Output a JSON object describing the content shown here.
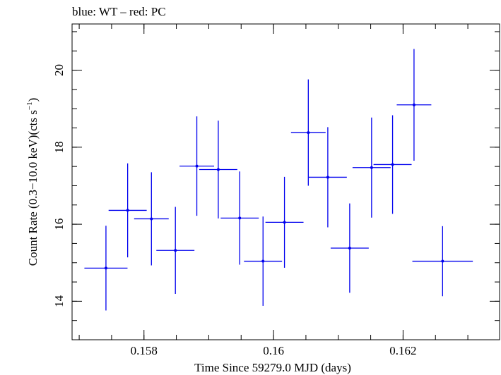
{
  "chart_data": {
    "type": "scatter",
    "title": "blue: WT – red: PC",
    "xlabel": "Time Since 59279.0 MJD (days)",
    "ylabel_main": "Count Rate (0.3−10.0 keV)(cts s",
    "ylabel_sup": "−1",
    "ylabel_close": ")",
    "xlim": [
      0.15689,
      0.16349
    ],
    "ylim": [
      13.0,
      21.2
    ],
    "x_ticks": [
      {
        "value": 0.158,
        "label": "0.158"
      },
      {
        "value": 0.16,
        "label": "0.16"
      },
      {
        "value": 0.162,
        "label": "0.162"
      }
    ],
    "x_minor_step": 0.0005,
    "y_ticks": [
      {
        "value": 14,
        "label": "14"
      },
      {
        "value": 16,
        "label": "16"
      },
      {
        "value": 18,
        "label": "18"
      },
      {
        "value": 20,
        "label": "20"
      }
    ],
    "y_minor_step": 0.5,
    "grid": false,
    "series": [
      {
        "color": "#0000ee",
        "points": [
          {
            "x": 0.157413,
            "xerr": 0.000333,
            "y": 14.86,
            "yerr": 1.1
          },
          {
            "x": 0.157748,
            "xerr": 0.000294,
            "y": 16.36,
            "yerr": 1.22
          },
          {
            "x": 0.158115,
            "xerr": 0.000267,
            "y": 16.14,
            "yerr": 1.21
          },
          {
            "x": 0.158485,
            "xerr": 0.000294,
            "y": 15.32,
            "yerr": 1.13
          },
          {
            "x": 0.158816,
            "xerr": 0.000267,
            "y": 17.51,
            "yerr": 1.29
          },
          {
            "x": 0.159147,
            "xerr": 0.000294,
            "y": 17.42,
            "yerr": 1.27
          },
          {
            "x": 0.159478,
            "xerr": 0.000294,
            "y": 16.16,
            "yerr": 1.21
          },
          {
            "x": 0.159838,
            "xerr": 0.000294,
            "y": 15.04,
            "yerr": 1.16
          },
          {
            "x": 0.160169,
            "xerr": 0.000294,
            "y": 16.05,
            "yerr": 1.18
          },
          {
            "x": 0.160537,
            "xerr": 0.000267,
            "y": 18.38,
            "yerr": 1.38
          },
          {
            "x": 0.160838,
            "xerr": 0.000294,
            "y": 17.22,
            "yerr": 1.3
          },
          {
            "x": 0.161176,
            "xerr": 0.000294,
            "y": 15.38,
            "yerr": 1.16
          },
          {
            "x": 0.161514,
            "xerr": 0.000294,
            "y": 17.47,
            "yerr": 1.3
          },
          {
            "x": 0.161838,
            "xerr": 0.000294,
            "y": 17.55,
            "yerr": 1.28
          },
          {
            "x": 0.162169,
            "xerr": 0.000267,
            "y": 19.1,
            "yerr": 1.45
          },
          {
            "x": 0.16261,
            "xerr": 0.000467,
            "y": 15.04,
            "yerr": 0.91
          }
        ]
      }
    ]
  }
}
